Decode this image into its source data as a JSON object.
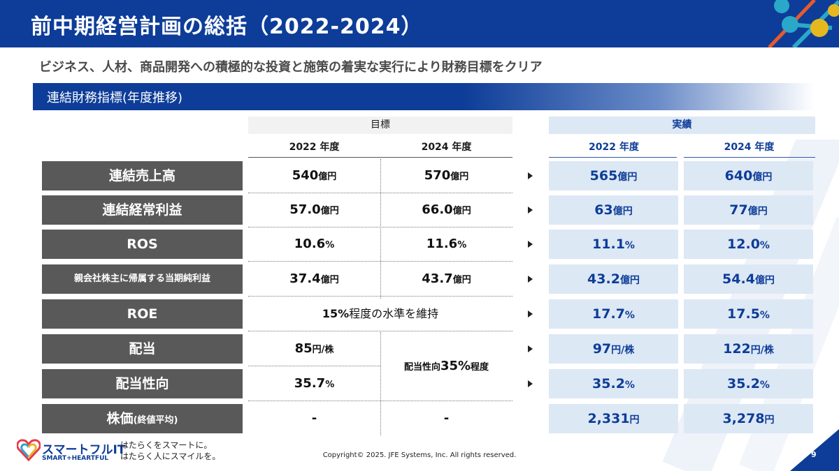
{
  "header": {
    "title": "前中期経営計画の総括（2022-2024）"
  },
  "subtitle": "ビジネス、人材、商品開発への積極的な投資と施策の着実な実行により財務目標をクリア",
  "section": {
    "title": "連結財務指標(年度推移)"
  },
  "columns": {
    "goal_group": "目標",
    "actual_group": "実績",
    "goal_2022": "2022 年度",
    "goal_2024": "2024 年度",
    "actual_2022": "2022 年度",
    "actual_2024": "2024 年度"
  },
  "rows": [
    {
      "label": "連結売上高",
      "goal_2022": {
        "num": "540",
        "unit": "億円"
      },
      "goal_2024": {
        "num": "570",
        "unit": "億円"
      },
      "actual_2022": {
        "num": "565",
        "unit": "億円"
      },
      "actual_2024": {
        "num": "640",
        "unit": "億円"
      }
    },
    {
      "label": "連結経常利益",
      "goal_2022": {
        "num": "57.0",
        "unit": "億円"
      },
      "goal_2024": {
        "num": "66.0",
        "unit": "億円"
      },
      "actual_2022": {
        "num": "63",
        "unit": "億円"
      },
      "actual_2024": {
        "num": "77",
        "unit": "億円"
      }
    },
    {
      "label": "ROS",
      "goal_2022": {
        "num": "10.6",
        "unit": "%"
      },
      "goal_2024": {
        "num": "11.6",
        "unit": "%"
      },
      "actual_2022": {
        "num": "11.1",
        "unit": "%"
      },
      "actual_2024": {
        "num": "12.0",
        "unit": "%"
      }
    },
    {
      "label": "親会社株主に帰属する当期純利益",
      "goal_2022": {
        "num": "37.4",
        "unit": "億円"
      },
      "goal_2024": {
        "num": "43.7",
        "unit": "億円"
      },
      "actual_2022": {
        "num": "43.2",
        "unit": "億円"
      },
      "actual_2024": {
        "num": "54.4",
        "unit": "億円"
      }
    },
    {
      "label": "ROE",
      "goal_merged": {
        "pre": "15%",
        "post": "程度の水準を維持"
      },
      "actual_2022": {
        "num": "17.7",
        "unit": "%"
      },
      "actual_2024": {
        "num": "17.5",
        "unit": "%"
      }
    },
    {
      "label": "配当",
      "goal_2022": {
        "num": "85",
        "unit": "円/株"
      },
      "actual_2022": {
        "num": "97",
        "unit": "円/株"
      },
      "actual_2024": {
        "num": "122",
        "unit": "円/株"
      }
    },
    {
      "label": "配当性向",
      "goal_2022": {
        "num": "35.7",
        "unit": "%"
      },
      "actual_2022": {
        "num": "35.2",
        "unit": "%"
      },
      "actual_2024": {
        "num": "35.2",
        "unit": "%"
      }
    },
    {
      "label": "株価",
      "label_suffix": "(終値平均)",
      "goal_2022": {
        "num": "-"
      },
      "goal_2024": {
        "num": "-"
      },
      "actual_2022": {
        "num": "2,331",
        "unit": "円"
      },
      "actual_2024": {
        "num": "3,278",
        "unit": "円"
      }
    }
  ],
  "payout_merged": {
    "pre": "配当性向",
    "num": "35%",
    "post": "程度"
  },
  "footer": {
    "logo_text": "スマートフルIT",
    "logo_sub": "SMART+HEARTFUL",
    "tagline_1": "はたらくをスマートに。",
    "tagline_2": "はたらく人にスマイルを。",
    "copyright": "Copyright© 2025. JFE Systems, Inc. All rights reserved.",
    "page": "9"
  },
  "colors": {
    "navy": "#0d3d98",
    "label_gray": "#595959",
    "actual_bg": "#dde8f5"
  }
}
